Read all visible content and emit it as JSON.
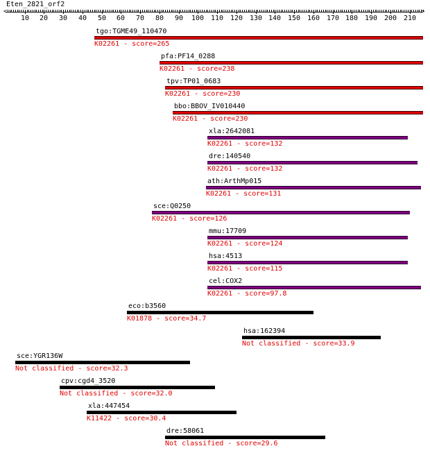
{
  "query": {
    "name": "Eten_2821_orf2",
    "length": 217
  },
  "axis": {
    "ticks": [
      10,
      20,
      30,
      40,
      50,
      60,
      70,
      80,
      90,
      100,
      110,
      120,
      130,
      140,
      150,
      160,
      170,
      180,
      190,
      200,
      210
    ]
  },
  "colors": {
    "orthologous": "#e00000",
    "paralogous": "#800080",
    "unclassified": "#000000",
    "subtitle": "#e00000"
  },
  "hits": [
    {
      "gene": "tgo:TGME49_110470",
      "ko": "K02261",
      "score": "265",
      "start": 46,
      "end": 217,
      "type": "orthologous"
    },
    {
      "gene": "pfa:PF14_0288",
      "ko": "K02261",
      "score": "238",
      "start": 80,
      "end": 217,
      "type": "orthologous"
    },
    {
      "gene": "tpv:TP01_0683",
      "ko": "K02261",
      "score": "230",
      "start": 83,
      "end": 217,
      "type": "orthologous"
    },
    {
      "gene": "bbo:BBOV_IV010440",
      "ko": "K02261",
      "score": "230",
      "start": 87,
      "end": 217,
      "type": "orthologous"
    },
    {
      "gene": "xla:2642081",
      "ko": "K02261",
      "score": "132",
      "start": 105,
      "end": 209,
      "type": "paralogous"
    },
    {
      "gene": "dre:140540",
      "ko": "K02261",
      "score": "132",
      "start": 105,
      "end": 214,
      "type": "paralogous"
    },
    {
      "gene": "ath:ArthMp015",
      "ko": "K02261",
      "score": "131",
      "start": 104,
      "end": 216,
      "type": "paralogous"
    },
    {
      "gene": "sce:Q0250",
      "ko": "K02261",
      "score": "126",
      "start": 76,
      "end": 210,
      "type": "paralogous"
    },
    {
      "gene": "mmu:17709",
      "ko": "K02261",
      "score": "124",
      "start": 105,
      "end": 209,
      "type": "paralogous"
    },
    {
      "gene": "hsa:4513",
      "ko": "K02261",
      "score": "115",
      "start": 105,
      "end": 209,
      "type": "paralogous"
    },
    {
      "gene": "cel:COX2",
      "ko": "K02261",
      "score": "97.8",
      "start": 105,
      "end": 216,
      "type": "paralogous"
    },
    {
      "gene": "eco:b3560",
      "ko": "K01878",
      "score": "34.7",
      "start": 63,
      "end": 160,
      "type": "unclassified"
    },
    {
      "gene": "hsa:162394",
      "ko": "Not classified",
      "score": "33.9",
      "start": 123,
      "end": 195,
      "type": "unclassified"
    },
    {
      "gene": "sce:YGR136W",
      "ko": "Not classified",
      "score": "32.3",
      "start": 5,
      "end": 96,
      "type": "unclassified"
    },
    {
      "gene": "cpv:cgd4_3520",
      "ko": "Not classified",
      "score": "32.0",
      "start": 28,
      "end": 109,
      "type": "unclassified"
    },
    {
      "gene": "xla:447454",
      "ko": "K11422",
      "score": "30.4",
      "start": 42,
      "end": 120,
      "type": "unclassified"
    },
    {
      "gene": "dre:58061",
      "ko": "Not classified",
      "score": "29.6",
      "start": 83,
      "end": 166,
      "type": "unclassified"
    }
  ],
  "score_prefix": " - score="
}
